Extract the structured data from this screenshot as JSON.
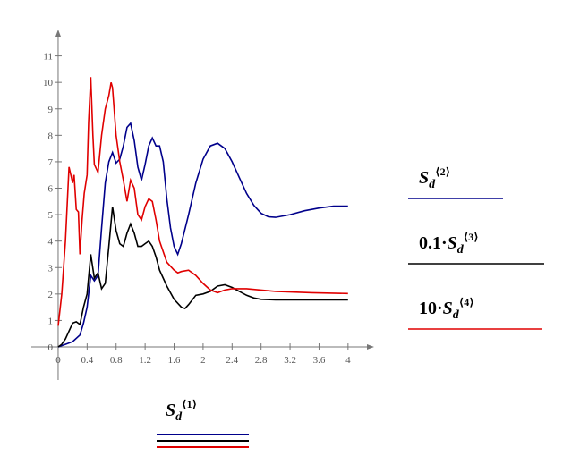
{
  "chart_data": {
    "type": "line",
    "x_label": "Sd⟨1⟩",
    "xlim": [
      -0.37,
      4.36
    ],
    "ylim": [
      -1.25,
      12
    ],
    "xticks": [
      0,
      0.4,
      0.8,
      1.2,
      1.6,
      2,
      2.4,
      2.8,
      3.2,
      3.6,
      4
    ],
    "yticks": [
      0,
      1,
      2,
      3,
      4,
      5,
      6,
      7,
      8,
      9,
      10,
      11
    ],
    "series": [
      {
        "name": "Sd⟨2⟩",
        "color": "#00008b",
        "x": [
          0,
          0.1,
          0.2,
          0.3,
          0.35,
          0.4,
          0.45,
          0.5,
          0.55,
          0.6,
          0.65,
          0.7,
          0.75,
          0.8,
          0.85,
          0.9,
          0.95,
          1.0,
          1.05,
          1.1,
          1.15,
          1.2,
          1.25,
          1.3,
          1.35,
          1.4,
          1.45,
          1.5,
          1.55,
          1.6,
          1.65,
          1.7,
          1.8,
          1.9,
          2.0,
          2.1,
          2.2,
          2.3,
          2.4,
          2.5,
          2.6,
          2.7,
          2.8,
          2.9,
          3.0,
          3.2,
          3.4,
          3.6,
          3.8,
          4.0
        ],
        "values": [
          0,
          0.1,
          0.2,
          0.45,
          0.9,
          1.5,
          2.7,
          2.5,
          2.7,
          4.5,
          6.2,
          7.0,
          7.35,
          6.95,
          7.1,
          7.6,
          8.3,
          8.45,
          7.8,
          6.8,
          6.3,
          6.9,
          7.6,
          7.9,
          7.6,
          7.6,
          7.0,
          5.6,
          4.5,
          3.8,
          3.5,
          3.9,
          5.0,
          6.2,
          7.1,
          7.6,
          7.7,
          7.5,
          7.0,
          6.4,
          5.8,
          5.35,
          5.05,
          4.92,
          4.9,
          5.0,
          5.15,
          5.25,
          5.32,
          5.32
        ]
      },
      {
        "name": "0.1·Sd⟨3⟩",
        "color": "#000000",
        "x": [
          0,
          0.05,
          0.1,
          0.15,
          0.2,
          0.25,
          0.3,
          0.35,
          0.4,
          0.45,
          0.5,
          0.55,
          0.6,
          0.65,
          0.7,
          0.75,
          0.8,
          0.85,
          0.9,
          0.95,
          1.0,
          1.05,
          1.1,
          1.15,
          1.2,
          1.25,
          1.3,
          1.35,
          1.4,
          1.5,
          1.6,
          1.7,
          1.75,
          1.8,
          1.9,
          2.0,
          2.1,
          2.2,
          2.3,
          2.4,
          2.5,
          2.6,
          2.7,
          2.8,
          3.0,
          3.5,
          4.0
        ],
        "values": [
          0,
          0.1,
          0.3,
          0.6,
          0.9,
          0.95,
          0.85,
          1.5,
          2.0,
          3.5,
          2.6,
          2.8,
          2.2,
          2.4,
          3.8,
          5.3,
          4.4,
          3.9,
          3.8,
          4.3,
          4.65,
          4.3,
          3.8,
          3.8,
          3.9,
          4.0,
          3.8,
          3.4,
          2.9,
          2.3,
          1.8,
          1.5,
          1.45,
          1.6,
          1.95,
          2.0,
          2.1,
          2.3,
          2.35,
          2.25,
          2.1,
          1.95,
          1.85,
          1.8,
          1.78,
          1.78,
          1.78
        ]
      },
      {
        "name": "10·Sd⟨4⟩",
        "color": "#e00000",
        "x": [
          0,
          0.05,
          0.1,
          0.15,
          0.2,
          0.22,
          0.25,
          0.28,
          0.3,
          0.33,
          0.36,
          0.4,
          0.42,
          0.45,
          0.48,
          0.5,
          0.55,
          0.6,
          0.65,
          0.7,
          0.73,
          0.75,
          0.8,
          0.85,
          0.9,
          0.95,
          1.0,
          1.05,
          1.1,
          1.15,
          1.2,
          1.25,
          1.3,
          1.35,
          1.4,
          1.5,
          1.6,
          1.65,
          1.7,
          1.8,
          1.9,
          2.0,
          2.1,
          2.2,
          2.3,
          2.4,
          2.6,
          2.8,
          3.0,
          3.5,
          4.0
        ],
        "values": [
          0.8,
          2.0,
          4.0,
          6.8,
          6.2,
          6.5,
          5.2,
          5.1,
          3.5,
          4.8,
          5.8,
          6.5,
          8.5,
          10.2,
          8.0,
          6.9,
          6.6,
          8.0,
          9.0,
          9.5,
          10.0,
          9.8,
          8.0,
          7.0,
          6.3,
          5.5,
          6.3,
          6.0,
          5.0,
          4.8,
          5.3,
          5.6,
          5.5,
          4.8,
          4.0,
          3.2,
          2.9,
          2.8,
          2.85,
          2.9,
          2.7,
          2.4,
          2.15,
          2.05,
          2.15,
          2.2,
          2.2,
          2.15,
          2.1,
          2.05,
          2.02
        ]
      }
    ]
  }
}
